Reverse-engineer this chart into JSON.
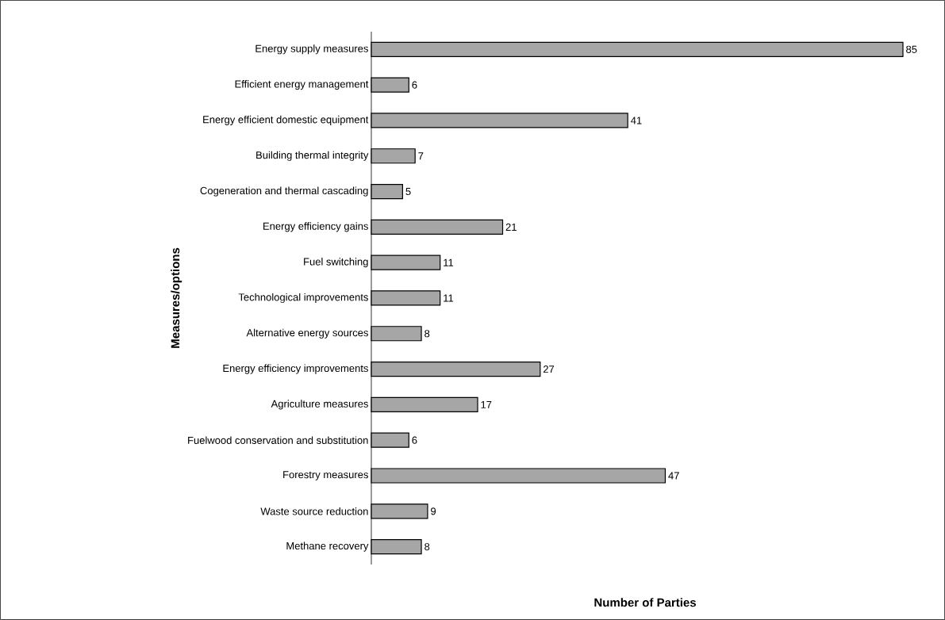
{
  "chart_data": {
    "type": "bar",
    "orientation": "horizontal",
    "xlabel": "Number of Parties",
    "ylabel": "Measures/options",
    "categories": [
      "Energy supply measures",
      "Efficient energy management",
      "Energy efficient domestic equipment",
      "Building thermal integrity",
      "Cogeneration and thermal cascading",
      "Energy efficiency gains",
      "Fuel switching",
      "Technological improvements",
      "Alternative energy sources",
      "Energy efficiency improvements",
      "Agriculture measures",
      "Fuelwood conservation and substitution",
      "Forestry measures",
      "Waste source reduction",
      "Methane recovery"
    ],
    "values": [
      85,
      6,
      41,
      7,
      5,
      21,
      11,
      11,
      8,
      27,
      17,
      6,
      47,
      9,
      8
    ],
    "color": "#a6a6a6",
    "data_labels": true,
    "tick_labels": "y"
  }
}
